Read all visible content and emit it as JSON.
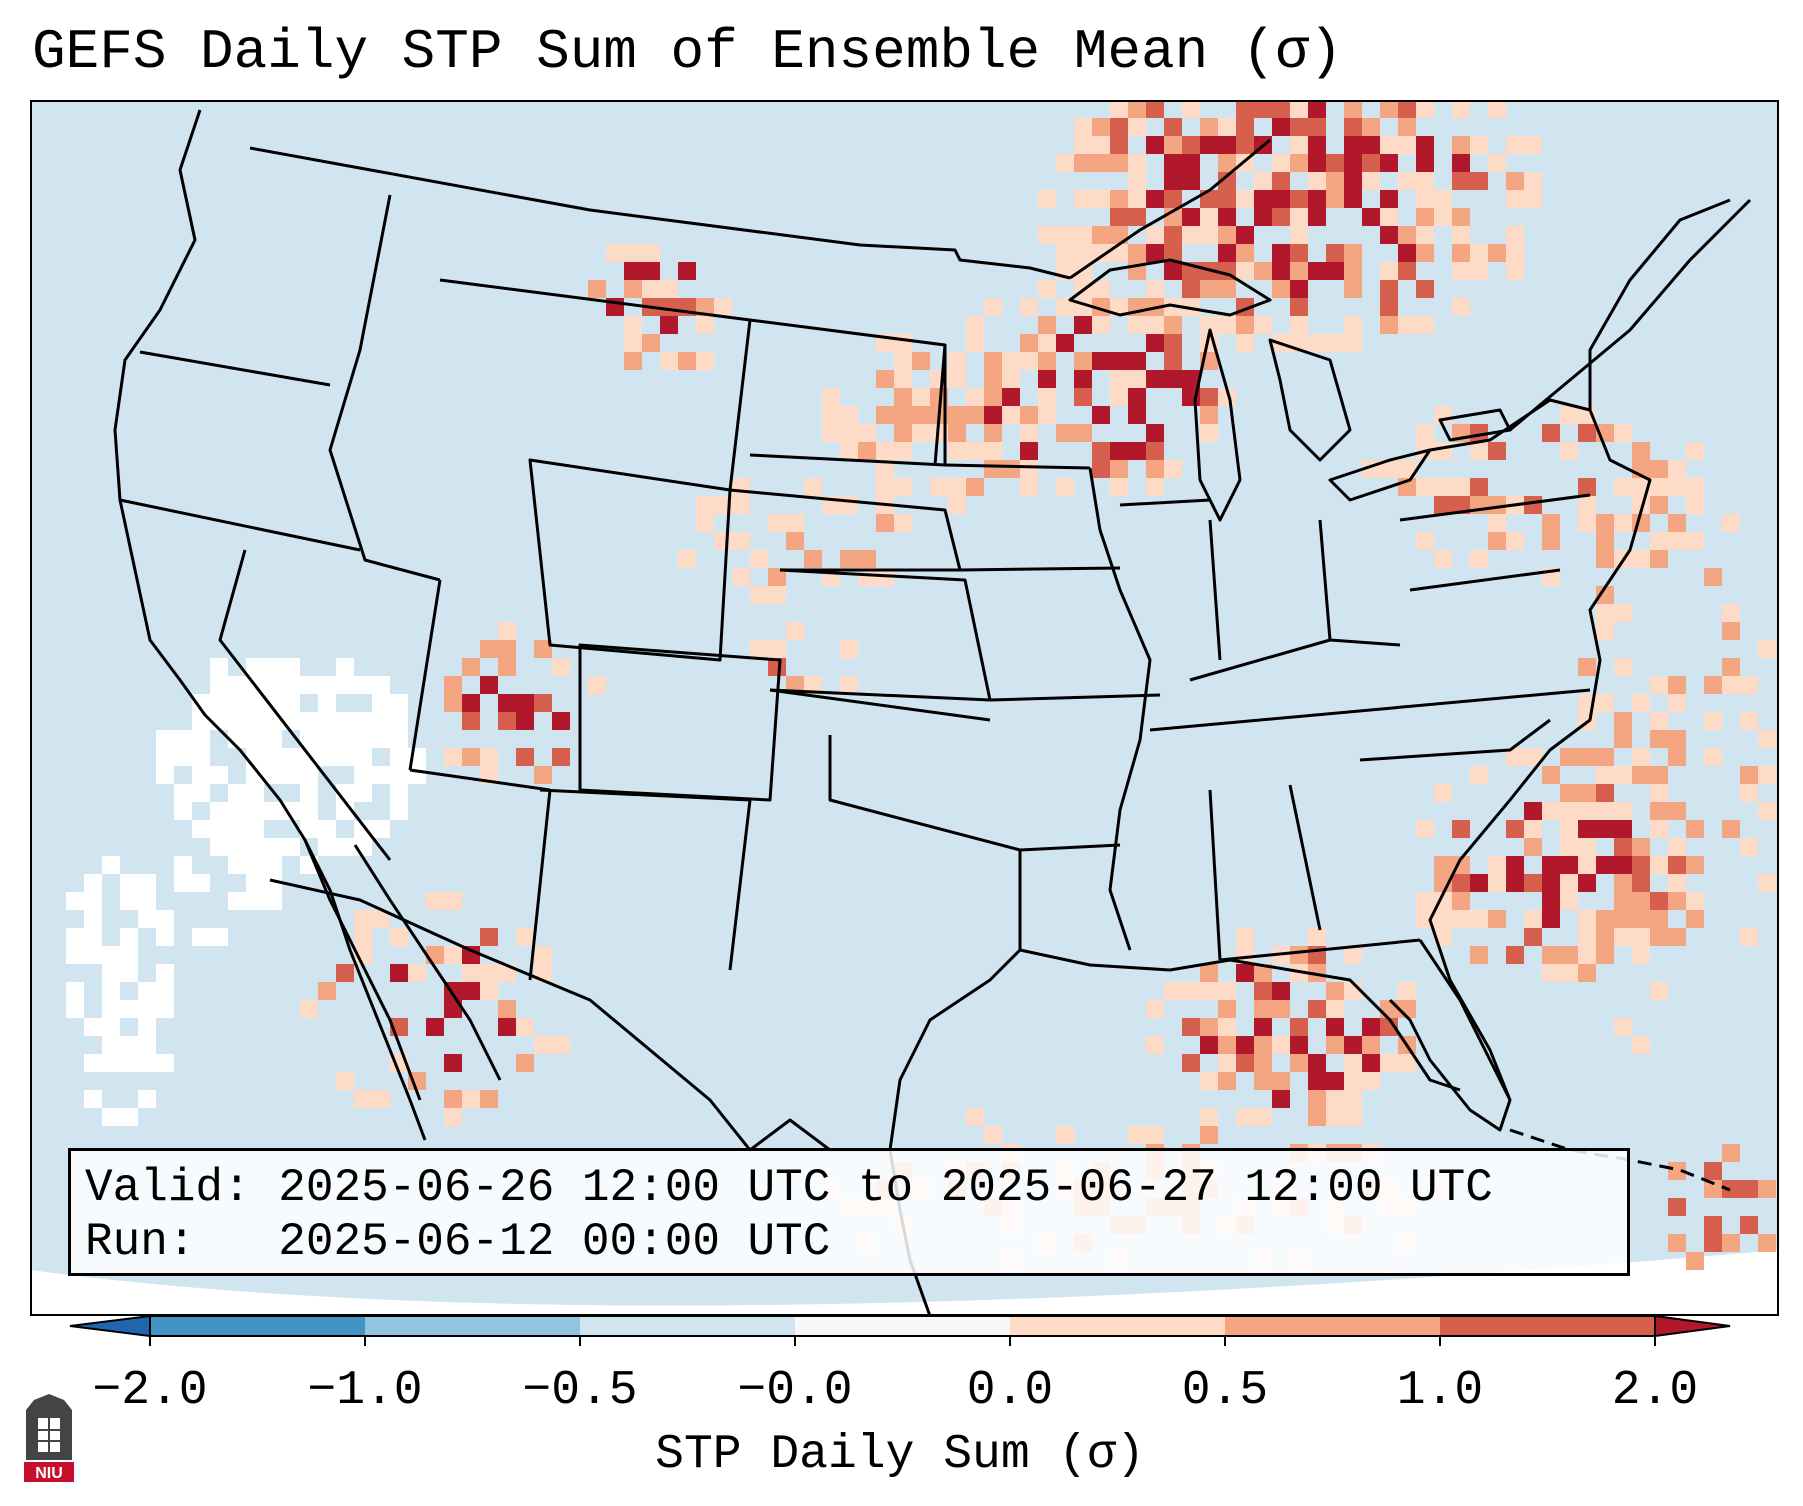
{
  "title": "GEFS Daily STP Sum of Ensemble Mean (σ)",
  "info": {
    "valid_label": "Valid:",
    "valid_value": "2025-06-26 12:00 UTC to 2025-06-27 12:00 UTC",
    "run_label": "Run:",
    "run_value": "2025-06-12 00:00 UTC"
  },
  "colorbar": {
    "label": "STP Daily Sum (σ)",
    "ticks": [
      "−2.0",
      "−1.0",
      "−0.5",
      "−0.0",
      "0.0",
      "0.5",
      "1.0",
      "2.0"
    ],
    "bin_colors": [
      "#4393c3",
      "#92c5de",
      "#d1e5f0",
      "#f7f7f7",
      "#fddbc7",
      "#f4a582",
      "#d6604d"
    ],
    "under_color": "#2166ac",
    "over_color": "#b2182b"
  },
  "logo": {
    "text": "NIU"
  },
  "colors": {
    "ocean": "#d1e5f0",
    "land_base": "#d1e5f0",
    "outline": "#000000"
  }
}
